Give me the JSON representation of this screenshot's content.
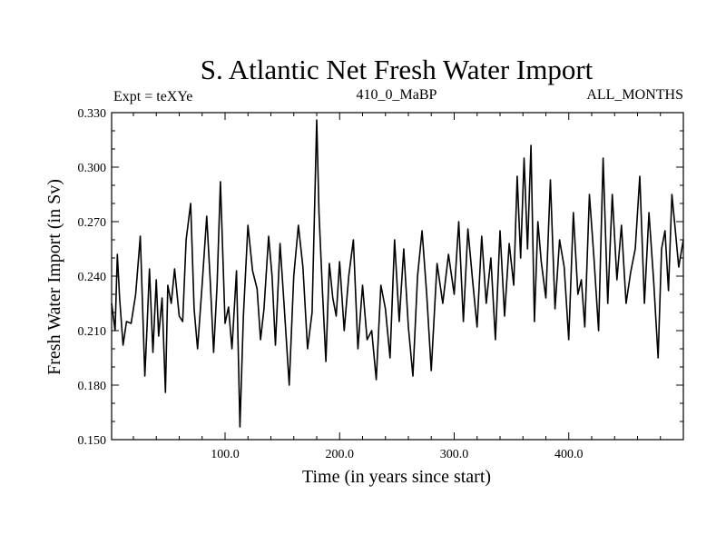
{
  "chart_data": {
    "type": "line",
    "title": "S. Atlantic Net Fresh Water Import",
    "left_label": "Expt = teXYe",
    "center_label": "410_0_MaBP",
    "right_label": "ALL_MONTHS",
    "xlabel": "Time (in years since start)",
    "ylabel": "Fresh Water Import (in Sv)",
    "xlim": [
      1,
      500
    ],
    "ylim": [
      0.15,
      0.33
    ],
    "x_ticks": [
      100,
      200,
      300,
      400
    ],
    "x_tick_labels": [
      "100.0",
      "200.0",
      "300.0",
      "400.0"
    ],
    "y_ticks": [
      0.15,
      0.18,
      0.21,
      0.24,
      0.27,
      0.3,
      0.33
    ],
    "y_tick_labels": [
      "0.150",
      "0.180",
      "0.210",
      "0.240",
      "0.270",
      "0.300",
      "0.330"
    ],
    "grid": false,
    "series": [
      {
        "name": "",
        "color": "#000000",
        "x": [
          1,
          4,
          6,
          8,
          11,
          14,
          18,
          22,
          26,
          30,
          32,
          34,
          37,
          40,
          42,
          45,
          48,
          50,
          53,
          56,
          60,
          63,
          66,
          70,
          73,
          76,
          80,
          84,
          87,
          90,
          93,
          96,
          100,
          103,
          106,
          110,
          113,
          116,
          120,
          124,
          128,
          131,
          134,
          138,
          141,
          144,
          148,
          152,
          156,
          160,
          164,
          168,
          172,
          176,
          180,
          182,
          185,
          188,
          191,
          194,
          197,
          200,
          204,
          208,
          212,
          216,
          220,
          224,
          228,
          232,
          236,
          240,
          244,
          248,
          252,
          256,
          260,
          264,
          268,
          272,
          276,
          280,
          285,
          290,
          295,
          300,
          304,
          308,
          312,
          316,
          320,
          324,
          328,
          332,
          336,
          340,
          344,
          348,
          352,
          355,
          358,
          361,
          364,
          367,
          370,
          373,
          376,
          380,
          384,
          388,
          392,
          396,
          400,
          404,
          408,
          411,
          414,
          418,
          422,
          426,
          430,
          434,
          438,
          442,
          446,
          450,
          454,
          458,
          462,
          466,
          470,
          474,
          478,
          481,
          484,
          487,
          490,
          493,
          496,
          500
        ],
        "y": [
          0.225,
          0.21,
          0.252,
          0.228,
          0.202,
          0.215,
          0.214,
          0.23,
          0.262,
          0.185,
          0.213,
          0.244,
          0.198,
          0.238,
          0.207,
          0.228,
          0.176,
          0.235,
          0.225,
          0.244,
          0.218,
          0.215,
          0.26,
          0.28,
          0.222,
          0.2,
          0.235,
          0.273,
          0.238,
          0.198,
          0.235,
          0.292,
          0.214,
          0.223,
          0.2,
          0.243,
          0.157,
          0.218,
          0.268,
          0.243,
          0.233,
          0.205,
          0.222,
          0.262,
          0.24,
          0.202,
          0.258,
          0.22,
          0.18,
          0.24,
          0.268,
          0.245,
          0.2,
          0.22,
          0.326,
          0.275,
          0.232,
          0.193,
          0.247,
          0.228,
          0.218,
          0.248,
          0.21,
          0.24,
          0.26,
          0.2,
          0.235,
          0.205,
          0.21,
          0.183,
          0.235,
          0.222,
          0.195,
          0.26,
          0.215,
          0.255,
          0.212,
          0.185,
          0.24,
          0.265,
          0.23,
          0.188,
          0.247,
          0.225,
          0.252,
          0.23,
          0.27,
          0.215,
          0.266,
          0.238,
          0.212,
          0.262,
          0.225,
          0.25,
          0.205,
          0.265,
          0.218,
          0.258,
          0.235,
          0.295,
          0.25,
          0.305,
          0.255,
          0.312,
          0.215,
          0.27,
          0.248,
          0.228,
          0.293,
          0.222,
          0.26,
          0.245,
          0.205,
          0.275,
          0.23,
          0.238,
          0.212,
          0.285,
          0.25,
          0.21,
          0.305,
          0.225,
          0.285,
          0.238,
          0.268,
          0.225,
          0.242,
          0.255,
          0.295,
          0.225,
          0.275,
          0.238,
          0.195,
          0.255,
          0.265,
          0.232,
          0.285,
          0.265,
          0.245,
          0.26
        ]
      }
    ]
  }
}
